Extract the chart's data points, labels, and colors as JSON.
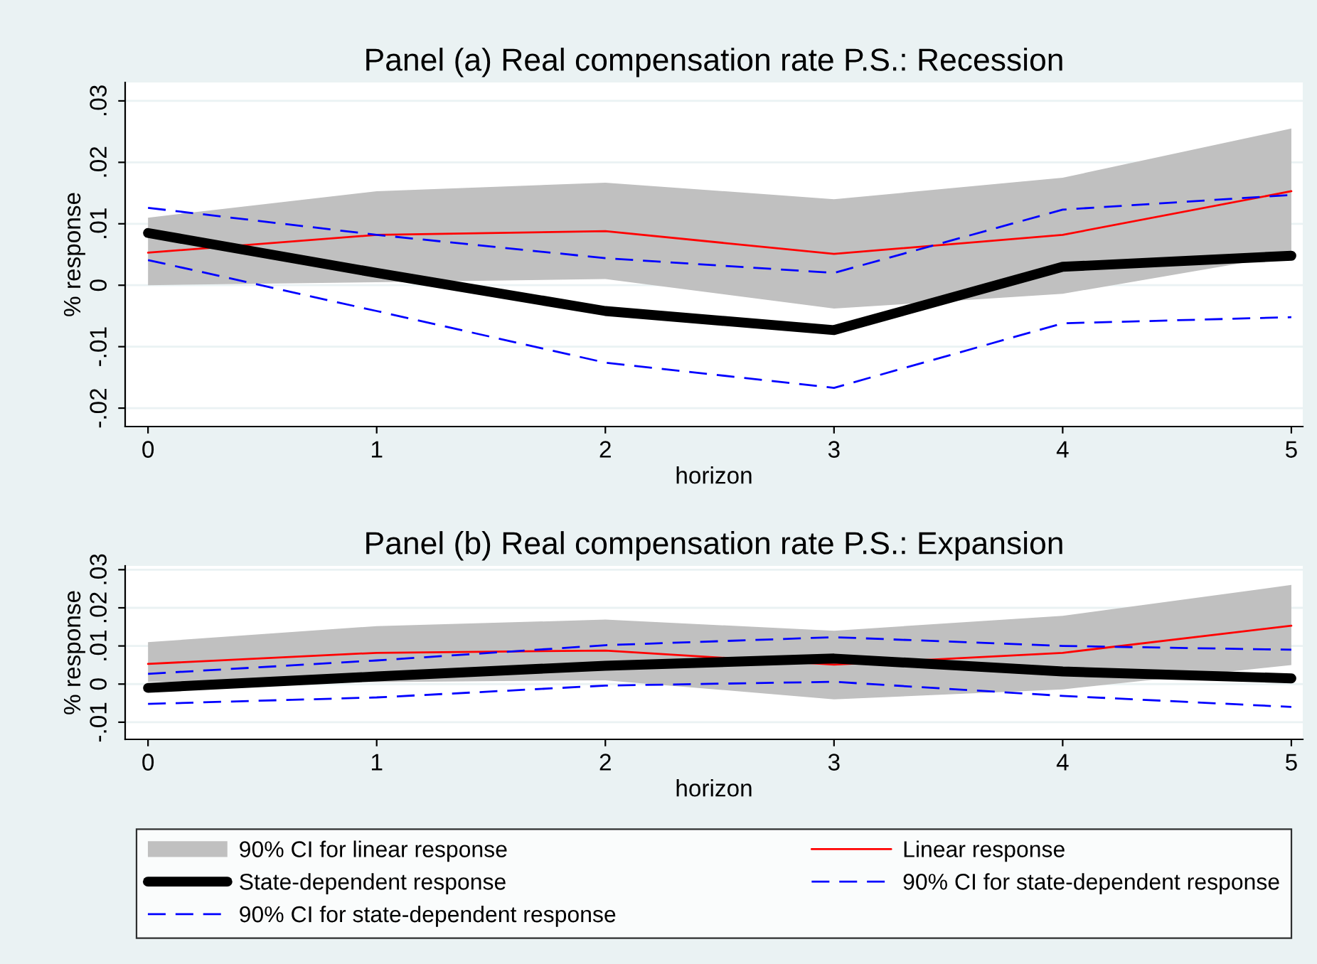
{
  "chart_data": [
    {
      "type": "line",
      "title": "Panel (a) Real compensation rate P.S.: Recession",
      "xlabel": "horizon",
      "ylabel": "% response",
      "x": [
        0,
        1,
        2,
        3,
        4,
        5
      ],
      "xlim": [
        -0.1,
        5.05
      ],
      "xticks": [
        0,
        1,
        2,
        3,
        4,
        5
      ],
      "ylim": [
        -0.023,
        0.033
      ],
      "yticks": [
        {
          "value": -0.02,
          "label": "-.02"
        },
        {
          "value": -0.01,
          "label": "-.01"
        },
        {
          "value": 0,
          "label": "0"
        },
        {
          "value": 0.01,
          "label": ".01"
        },
        {
          "value": 0.02,
          "label": ".02"
        },
        {
          "value": 0.03,
          "label": ".03"
        }
      ],
      "grid": "y",
      "series": [
        {
          "color": "#ff0000",
          "line_style": "solid",
          "values": [
            0.0053,
            0.0082,
            0.0088,
            0.0051,
            0.0082,
            0.0153
          ],
          "lower": [
            0.0,
            0.0005,
            0.001,
            -0.0038,
            -0.0014,
            0.005
          ],
          "upper": [
            0.011,
            0.0153,
            0.0167,
            0.014,
            0.0175,
            0.0255
          ]
        },
        {
          "color": "#000000",
          "line_style": "solid",
          "values": [
            0.0085,
            0.002,
            -0.0042,
            -0.0073,
            0.003,
            0.0048
          ]
        },
        {
          "color": "#0000ff",
          "line_style": "dashed",
          "values": [
            0.0126,
            0.0082,
            0.0044,
            0.002,
            0.0123,
            0.0147
          ]
        },
        {
          "color": "#0000ff",
          "line_style": "dashed",
          "values": [
            0.0041,
            -0.0042,
            -0.0126,
            -0.0167,
            -0.0062,
            -0.0052
          ]
        }
      ]
    },
    {
      "type": "line",
      "title": "Panel (b) Real compensation rate P.S.: Expansion",
      "xlabel": "horizon",
      "ylabel": "% response",
      "x": [
        0,
        1,
        2,
        3,
        4,
        5
      ],
      "xlim": [
        -0.1,
        5.05
      ],
      "xticks": [
        0,
        1,
        2,
        3,
        4,
        5
      ],
      "ylim": [
        -0.0145,
        0.031
      ],
      "yticks": [
        {
          "value": -0.01,
          "label": "-.01"
        },
        {
          "value": 0,
          "label": "0"
        },
        {
          "value": 0.01,
          "label": ".01"
        },
        {
          "value": 0.02,
          "label": ".02"
        },
        {
          "value": 0.03,
          "label": ".03"
        }
      ],
      "grid": "y",
      "legend": "bottom",
      "annotations": [
        "90% CI for linear response"
      ],
      "series": [
        {
          "name": "Linear response",
          "color": "#ff0000",
          "line_style": "solid",
          "values": [
            0.0053,
            0.0082,
            0.0088,
            0.0051,
            0.0082,
            0.0153
          ],
          "lower": [
            0.0006,
            0.0005,
            0.001,
            -0.004,
            -0.0014,
            0.005
          ],
          "upper": [
            0.011,
            0.0152,
            0.0169,
            0.014,
            0.0179,
            0.026
          ]
        },
        {
          "name": "State-dependent response",
          "color": "#000000",
          "line_style": "solid",
          "values": [
            -0.001,
            0.002,
            0.0048,
            0.0067,
            0.0033,
            0.0015
          ]
        },
        {
          "name": "90% CI for state-dependent response",
          "color": "#0000ff",
          "line_style": "dashed",
          "values": [
            0.0027,
            0.0062,
            0.0102,
            0.0123,
            0.01,
            0.009
          ]
        },
        {
          "name": "90% CI for state-dependent response",
          "color": "#0000ff",
          "line_style": "dashed",
          "values": [
            -0.0052,
            -0.0035,
            -0.0004,
            0.0006,
            -0.0031,
            -0.006
          ]
        }
      ]
    }
  ]
}
